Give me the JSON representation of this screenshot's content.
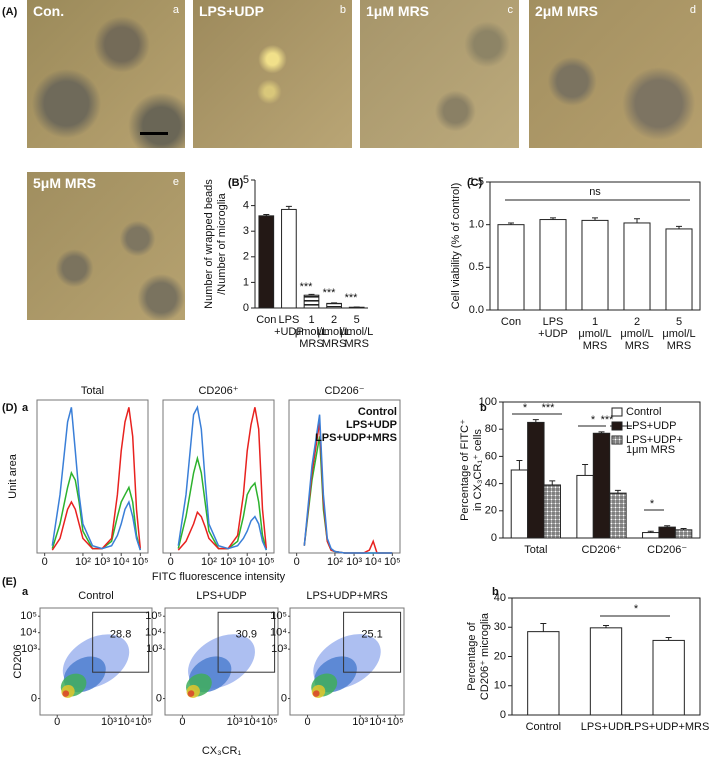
{
  "panel_labels": [
    "(A)",
    "(B)",
    "(C)",
    "(D)",
    "(E)"
  ],
  "subpanel_labels": [
    "a",
    "b",
    "a",
    "b"
  ],
  "images": [
    {
      "label": "Con.",
      "letter": "a"
    },
    {
      "label": "LPS+UDP",
      "letter": "b"
    },
    {
      "label": "1μM MRS",
      "letter": "c"
    },
    {
      "label": "2μM MRS",
      "letter": "d"
    },
    {
      "label": "5μM MRS",
      "letter": "e"
    }
  ],
  "chart_data": [
    {
      "type": "bar",
      "ylabel": "Number of wrapped beads\n/Number of microglia",
      "categories": [
        "Con",
        "LPS\n+UDP",
        "1\nμmol/L\nMRS",
        "2\nμmol/L\nMRS",
        "5\nμmol/L\nMRS"
      ],
      "values": [
        3.6,
        3.85,
        0.5,
        0.18,
        0.03
      ],
      "errors": [
        0.05,
        0.12,
        0.03,
        0.02,
        0.01
      ],
      "colors": [
        "#231815",
        "#ffffff",
        "hstripe",
        "hstripe2",
        "#ffffff"
      ],
      "annotations": [
        "***",
        "***",
        "***"
      ],
      "ylim": [
        0,
        5
      ],
      "yticks": [
        0,
        1,
        2,
        3,
        4,
        5
      ],
      "frame": false
    },
    {
      "type": "bar",
      "ylabel": "Cell viability (% of control)",
      "categories": [
        "Con",
        "LPS\n+UDP",
        "1\nμmol/L\nMRS",
        "2\nμmol/L\nMRS",
        "5\nμmol/L\nMRS"
      ],
      "values": [
        1.0,
        1.06,
        1.05,
        1.02,
        0.95
      ],
      "errors": [
        0.02,
        0.02,
        0.03,
        0.05,
        0.03
      ],
      "colors": [
        "#ffffff",
        "#ffffff",
        "#ffffff",
        "#ffffff",
        "#ffffff"
      ],
      "annotations": [
        "ns"
      ],
      "ylim": [
        0,
        1.5
      ],
      "yticks": [
        {
          "value": 0,
          "label": "0.0"
        },
        {
          "value": 0.5,
          "label": "0.5"
        },
        {
          "value": 1,
          "label": "1.0"
        },
        {
          "value": 1.5,
          "label": "1.5"
        }
      ],
      "frame": true
    },
    {
      "type": "line",
      "title": "Total",
      "ylabel": "Unit area",
      "x": [
        0.4,
        0.8,
        1.2,
        1.4,
        1.6,
        1.8,
        2.0,
        2.5,
        3.0,
        3.5,
        3.8,
        4.0,
        4.2,
        4.4,
        4.6,
        4.8,
        5.0
      ],
      "series": [
        {
          "color": "#2db22d",
          "values": [
            3,
            20,
            45,
            55,
            50,
            35,
            15,
            3,
            3,
            8,
            25,
            35,
            40,
            45,
            35,
            12,
            2
          ]
        },
        {
          "color": "#e8221f",
          "values": [
            2,
            10,
            30,
            35,
            30,
            20,
            10,
            3,
            3,
            10,
            40,
            70,
            90,
            100,
            80,
            30,
            3
          ]
        },
        {
          "color": "#3a7fd8",
          "values": [
            5,
            40,
            90,
            100,
            70,
            40,
            20,
            5,
            3,
            5,
            12,
            20,
            30,
            35,
            25,
            10,
            2
          ]
        }
      ],
      "xlim": [
        -0.4,
        5.4
      ],
      "ylim": [
        0,
        105
      ],
      "xticks": [
        {
          "value": 0,
          "label": "0"
        },
        {
          "value": 2,
          "label": "10²"
        },
        {
          "value": 3,
          "label": "10³"
        },
        {
          "value": 4,
          "label": "10⁴"
        },
        {
          "value": 5,
          "label": "10⁵"
        }
      ]
    },
    {
      "type": "line",
      "title": "CD206⁺",
      "xlabel": "FITC fluorescence intensity",
      "x": [
        0.4,
        0.8,
        1.2,
        1.4,
        1.6,
        1.8,
        2.0,
        2.5,
        3.0,
        3.5,
        3.8,
        4.0,
        4.2,
        4.4,
        4.6,
        4.8,
        5.0
      ],
      "series": [
        {
          "color": "#2db22d",
          "values": [
            3,
            25,
            55,
            65,
            55,
            35,
            15,
            3,
            3,
            8,
            25,
            40,
            45,
            48,
            35,
            12,
            2
          ]
        },
        {
          "color": "#e8221f",
          "values": [
            2,
            8,
            20,
            28,
            25,
            18,
            10,
            3,
            3,
            12,
            40,
            70,
            88,
            100,
            85,
            30,
            3
          ]
        },
        {
          "color": "#3a7fd8",
          "values": [
            5,
            40,
            95,
            100,
            85,
            50,
            20,
            5,
            3,
            5,
            10,
            15,
            22,
            25,
            20,
            8,
            2
          ]
        }
      ],
      "xlim": [
        -0.4,
        5.4
      ],
      "ylim": [
        0,
        105
      ],
      "xticks": [
        {
          "value": 0,
          "label": "0"
        },
        {
          "value": 2,
          "label": "10²"
        },
        {
          "value": 3,
          "label": "10³"
        },
        {
          "value": 4,
          "label": "10⁴"
        },
        {
          "value": 5,
          "label": "10⁵"
        }
      ]
    },
    {
      "type": "line",
      "title": "CD206⁻",
      "legend": "upper right",
      "x": [
        0.4,
        0.8,
        1.2,
        1.4,
        1.6,
        1.8,
        2.0,
        2.5,
        3.0,
        3.5,
        3.8,
        4.0,
        4.2,
        4.4,
        4.6,
        4.8,
        5.0
      ],
      "series": [
        {
          "name": "Control",
          "color": "#2db22d",
          "values": [
            5,
            50,
            80,
            30,
            8,
            2,
            1,
            0,
            0,
            0,
            0,
            0,
            0,
            0,
            0,
            0,
            0
          ]
        },
        {
          "name": "LPS+UDP",
          "color": "#e8221f",
          "values": [
            5,
            55,
            90,
            35,
            8,
            2,
            1,
            0,
            0,
            0,
            2,
            8,
            0,
            0,
            0,
            0,
            0
          ]
        },
        {
          "name": "LPS+UDP+MRS",
          "color": "#3a7fd8",
          "values": [
            5,
            60,
            95,
            40,
            10,
            3,
            1,
            0,
            0,
            0,
            0,
            0,
            0,
            0,
            0,
            0,
            0
          ]
        }
      ],
      "xlim": [
        -0.4,
        5.4
      ],
      "ylim": [
        0,
        105
      ],
      "xticks": [
        {
          "value": 0,
          "label": "0"
        },
        {
          "value": 2,
          "label": "10²"
        },
        {
          "value": 3,
          "label": "10³"
        },
        {
          "value": 4,
          "label": "10⁴"
        },
        {
          "value": 5,
          "label": "10⁵"
        }
      ]
    },
    {
      "type": "bar",
      "ylabel": "Percentage of FITC⁺\nin CX₃CR₁⁺ cells",
      "legend": "upper right",
      "categories": [
        "Total",
        "CD206⁺",
        "CD206⁻"
      ],
      "series": [
        {
          "name": "Control",
          "color": "#ffffff",
          "values": [
            50,
            46,
            4
          ],
          "errors": [
            7,
            8,
            1
          ]
        },
        {
          "name": "LPS+UDP",
          "color": "#231815",
          "values": [
            85,
            77,
            8
          ],
          "errors": [
            2,
            1,
            1
          ]
        },
        {
          "name": "LPS+UDP+\n1μm MRS",
          "color": "check",
          "values": [
            39,
            33,
            6
          ],
          "errors": [
            3,
            2,
            1
          ]
        }
      ],
      "annotations": [
        "*",
        "***",
        "*",
        "***",
        "*"
      ],
      "ylim": [
        0,
        100
      ],
      "yticks": [
        0,
        20,
        40,
        60,
        80,
        100
      ],
      "frame": true
    },
    {
      "type": "density",
      "title": "Control",
      "ylabel": "CD206",
      "gate_value": 28.8,
      "xlim": [
        -1,
        5.5
      ],
      "ylim": [
        -1,
        5.5
      ],
      "xticks": [
        {
          "value": 0,
          "label": "0"
        },
        {
          "value": 3,
          "label": "10³"
        },
        {
          "value": 4,
          "label": "10⁴"
        },
        {
          "value": 5,
          "label": "10⁵"
        }
      ],
      "yticks": [
        {
          "value": 0,
          "label": "0"
        },
        {
          "value": 3,
          "label": "10³"
        },
        {
          "value": 4,
          "label": "10⁴"
        },
        {
          "value": 5,
          "label": "10⁵"
        }
      ]
    },
    {
      "type": "density",
      "title": "LPS+UDP",
      "xlabel": "CX₃CR₁",
      "gate_value": 30.9,
      "xlim": [
        -1,
        5.5
      ],
      "ylim": [
        -1,
        5.5
      ],
      "xticks": [
        {
          "value": 0,
          "label": "0"
        },
        {
          "value": 3,
          "label": "10³"
        },
        {
          "value": 4,
          "label": "10⁴"
        },
        {
          "value": 5,
          "label": "10⁵"
        }
      ],
      "yticks": [
        {
          "value": 0,
          "label": "0"
        },
        {
          "value": 3,
          "label": "10³"
        },
        {
          "value": 4,
          "label": "10⁴"
        },
        {
          "value": 5,
          "label": "10⁵"
        }
      ]
    },
    {
      "type": "density",
      "title": "LPS+UDP+MRS",
      "gate_value": 25.1,
      "xlim": [
        -1,
        5.5
      ],
      "ylim": [
        -1,
        5.5
      ],
      "xticks": [
        {
          "value": 0,
          "label": "0"
        },
        {
          "value": 3,
          "label": "10³"
        },
        {
          "value": 4,
          "label": "10⁴"
        },
        {
          "value": 5,
          "label": "10⁵"
        }
      ],
      "yticks": [
        {
          "value": 0,
          "label": "0"
        },
        {
          "value": 3,
          "label": "10³"
        },
        {
          "value": 4,
          "label": "10⁴"
        },
        {
          "value": 5,
          "label": "10⁵"
        }
      ]
    },
    {
      "type": "bar",
      "ylabel": "Percentage of\nCD206⁺ microglia",
      "categories": [
        "Control",
        "LPS+UDP",
        "LPS+UDP+MRS"
      ],
      "values": [
        28.5,
        29.8,
        25.5
      ],
      "errors": [
        2.8,
        0.8,
        1.0
      ],
      "colors": [
        "#ffffff",
        "#ffffff",
        "#ffffff"
      ],
      "annotations": [
        "*"
      ],
      "ylim": [
        0,
        40
      ],
      "yticks": [
        0,
        10,
        20,
        30,
        40
      ],
      "frame": true
    }
  ]
}
